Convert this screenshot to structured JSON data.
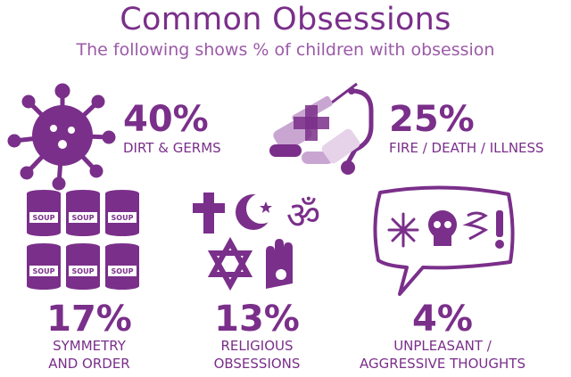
{
  "title": "Common Obsessions",
  "subtitle": "The following shows % of children with obsession",
  "chart_data": {
    "type": "table",
    "unit": "%",
    "items": [
      {
        "value": 40,
        "display": "40%",
        "label_lines": [
          "DIRT & GERMS"
        ],
        "icon": "germ-icon"
      },
      {
        "value": 25,
        "display": "25%",
        "label_lines": [
          "FIRE / DEATH / ILLNESS"
        ],
        "icon": "medical-icon"
      },
      {
        "value": 17,
        "display": "17%",
        "label_lines": [
          "SYMMETRY",
          "AND ORDER"
        ],
        "icon": "soup-cans-icon"
      },
      {
        "value": 13,
        "display": "13%",
        "label_lines": [
          "RELIGIOUS",
          "OBSESSIONS"
        ],
        "icon": "religious-symbols-icon"
      },
      {
        "value": 4,
        "display": "4%",
        "label_lines": [
          "UNPLEASANT /",
          "AGGRESSIVE THOUGHTS"
        ],
        "icon": "speech-bubble-icon"
      }
    ]
  },
  "soup_can_text": "SOUP",
  "colors": {
    "primary": "#7a2f8a",
    "light": "#c9a6d2",
    "pale": "#e6d3ea"
  }
}
